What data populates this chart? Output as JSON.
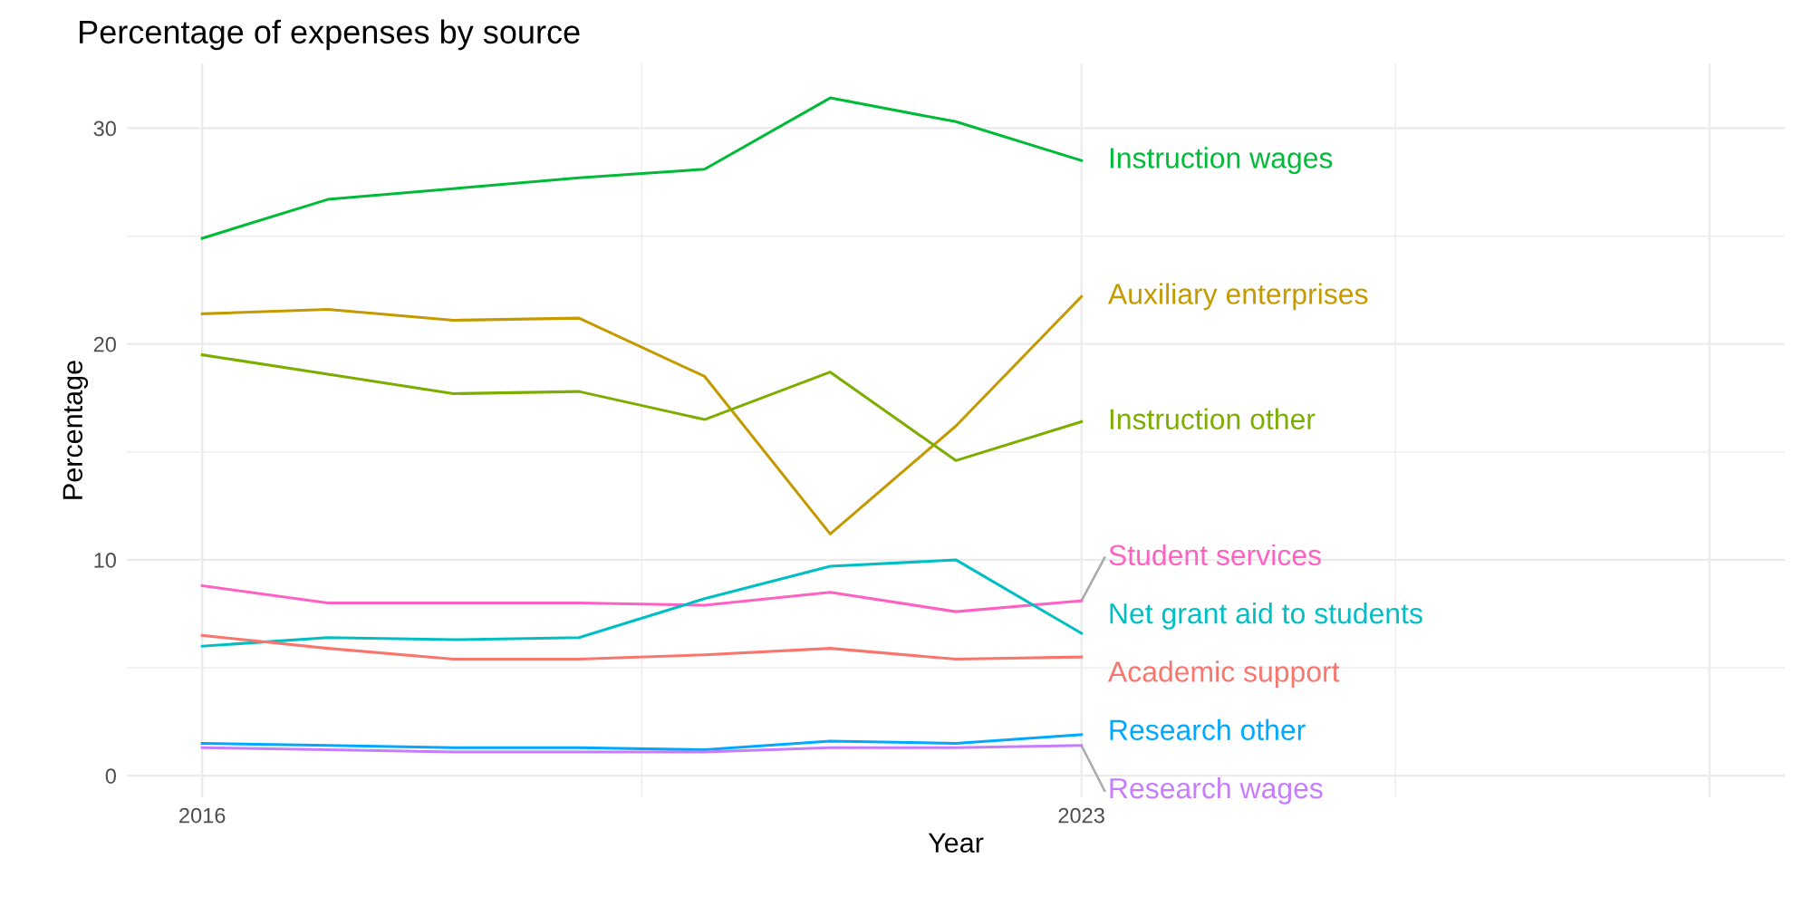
{
  "chart_data": {
    "type": "line",
    "title": "Percentage of expenses by source",
    "xlabel": "Year",
    "ylabel": "Percentage",
    "x": [
      2016,
      2017,
      2018,
      2019,
      2020,
      2021,
      2022,
      2023
    ],
    "xlim": [
      2015.4,
      2028.6
    ],
    "xticks": [
      2016,
      2023,
      {
        "value": 2028,
        "label": null
      }
    ],
    "ylim": [
      -1,
      33
    ],
    "yticks": [
      0,
      10,
      20,
      30
    ],
    "grid": true,
    "legend": false,
    "line_style": "solid",
    "marker": "none",
    "series": [
      {
        "name": "Instruction wages",
        "color": "#00ba38",
        "values": [
          24.9,
          26.7,
          27.2,
          27.7,
          28.1,
          31.4,
          30.3,
          28.5
        ]
      },
      {
        "name": "Auxiliary enterprises",
        "color": "#c49a00",
        "values": [
          21.4,
          21.6,
          21.1,
          21.2,
          18.5,
          11.2,
          16.2,
          22.2
        ]
      },
      {
        "name": "Instruction other",
        "color": "#7cae00",
        "values": [
          19.5,
          18.6,
          17.7,
          17.8,
          16.5,
          18.7,
          14.6,
          16.4
        ]
      },
      {
        "name": "Student services",
        "color": "#ff61c3",
        "values": [
          8.8,
          8.0,
          8.0,
          8.0,
          7.9,
          8.5,
          7.6,
          8.1
        ]
      },
      {
        "name": "Net grant aid to students",
        "color": "#00bfc4",
        "values": [
          6.0,
          6.4,
          6.3,
          6.4,
          8.2,
          9.7,
          10.0,
          6.6
        ]
      },
      {
        "name": "Academic support",
        "color": "#f8766d",
        "values": [
          6.5,
          5.9,
          5.4,
          5.4,
          5.6,
          5.9,
          5.4,
          5.5
        ]
      },
      {
        "name": "Research other",
        "color": "#00a9ff",
        "values": [
          1.5,
          1.4,
          1.3,
          1.3,
          1.2,
          1.6,
          1.5,
          1.9
        ]
      },
      {
        "name": "Research wages",
        "color": "#c77cff",
        "values": [
          1.3,
          1.2,
          1.1,
          1.1,
          1.1,
          1.3,
          1.3,
          1.4
        ]
      }
    ]
  }
}
